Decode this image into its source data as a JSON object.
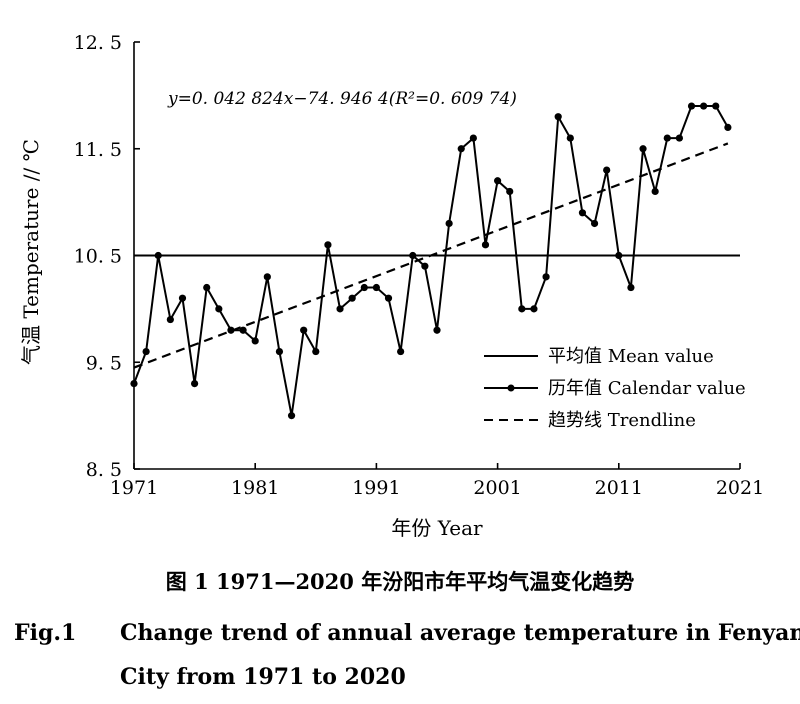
{
  "chart_data": {
    "type": "line",
    "xlabel": "年份 Year",
    "ylabel": "气温 Temperature // ℃",
    "xlim": [
      1971,
      2021
    ],
    "ylim": [
      8.5,
      12.5
    ],
    "x_ticks": [
      "1971",
      "1981",
      "1991",
      "2001",
      "2011",
      "2021"
    ],
    "y_ticks": [
      "8. 5",
      "9. 5",
      "10. 5",
      "11. 5",
      "12. 5"
    ],
    "x_tick_values": [
      1971,
      1981,
      1991,
      2001,
      2011,
      2021
    ],
    "y_tick_values": [
      8.5,
      9.5,
      10.5,
      11.5,
      12.5
    ],
    "equation": "y=0. 042  824x−74. 946  4(R²=0. 609  74)",
    "legend_position": "bottom-right",
    "grid": false,
    "series": [
      {
        "name": "历年值 Calendar value",
        "style": "line-with-markers",
        "color": "#000000",
        "x": [
          1971,
          1972,
          1973,
          1974,
          1975,
          1976,
          1977,
          1978,
          1979,
          1980,
          1981,
          1982,
          1983,
          1984,
          1985,
          1986,
          1987,
          1988,
          1989,
          1990,
          1991,
          1992,
          1993,
          1994,
          1995,
          1996,
          1997,
          1998,
          1999,
          2000,
          2001,
          2002,
          2003,
          2004,
          2005,
          2006,
          2007,
          2008,
          2009,
          2010,
          2011,
          2012,
          2013,
          2014,
          2015,
          2016,
          2017,
          2018,
          2019,
          2020
        ],
        "y": [
          9.3,
          9.6,
          10.5,
          9.9,
          10.1,
          9.3,
          10.2,
          10.0,
          9.8,
          9.8,
          9.7,
          10.3,
          9.6,
          9.0,
          9.8,
          9.6,
          10.6,
          10.0,
          10.1,
          10.2,
          10.2,
          10.1,
          9.6,
          10.5,
          10.4,
          9.8,
          10.8,
          11.5,
          11.6,
          10.6,
          11.2,
          11.1,
          10.0,
          10.0,
          10.3,
          11.8,
          11.6,
          10.9,
          10.8,
          11.3,
          10.5,
          10.2,
          11.5,
          11.1,
          11.6,
          11.6,
          11.9,
          11.9,
          11.9,
          11.7
        ]
      },
      {
        "name": "平均值 Mean value",
        "style": "solid-line",
        "color": "#000000",
        "x": [
          1971,
          2021
        ],
        "y": [
          10.5,
          10.5
        ]
      },
      {
        "name": "趋势线 Trendline",
        "style": "dashed-line",
        "color": "#000000",
        "x": [
          1971,
          2020
        ],
        "y": [
          9.45,
          11.55
        ]
      }
    ]
  },
  "captions": {
    "cn": "图 1    1971—2020 年汾阳市年平均气温变化趋势",
    "en_label": "Fig.1",
    "en_line1": "Change trend of annual average temperature in Fenyang",
    "en_line2": "City from 1971 to 2020"
  }
}
